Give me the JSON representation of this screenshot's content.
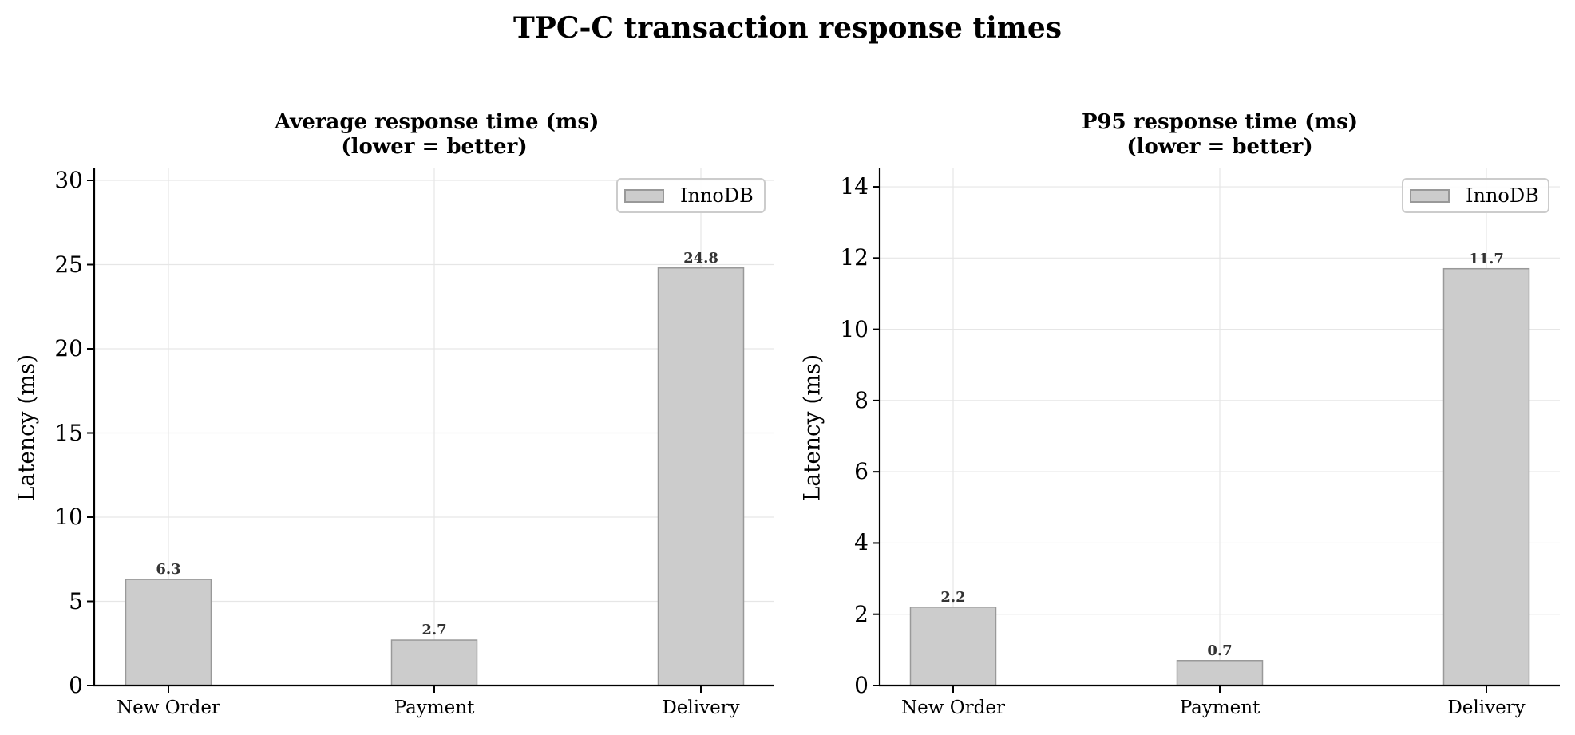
{
  "figure": {
    "title": "TPC-C transaction response times"
  },
  "colors": {
    "bar_fill": "#cccccc",
    "bar_edge": "#999999",
    "value_label": "#333333",
    "grid": "#e6e6e6",
    "axis": "#000000"
  },
  "chart_data": [
    {
      "type": "bar",
      "title": "Average response time (ms)\n(lower = better)",
      "title_lines": [
        "Average response time (ms)",
        "(lower = better)"
      ],
      "xlabel": "",
      "ylabel": "Latency (ms)",
      "categories": [
        "New Order",
        "Payment",
        "Delivery"
      ],
      "series": [
        {
          "name": "InnoDB",
          "values": [
            6.3,
            2.7,
            24.8
          ]
        }
      ],
      "value_labels": [
        "6.3",
        "2.7",
        "24.8"
      ],
      "yticks": [
        0,
        5,
        10,
        15,
        20,
        25,
        30
      ],
      "ylim": [
        0,
        31
      ],
      "grid": true,
      "legend": {
        "position": "upper right",
        "entries": [
          "InnoDB"
        ]
      }
    },
    {
      "type": "bar",
      "title": "P95 response time (ms)\n(lower = better)",
      "title_lines": [
        "P95 response time (ms)",
        "(lower = better)"
      ],
      "xlabel": "",
      "ylabel": "Latency (ms)",
      "categories": [
        "New Order",
        "Payment",
        "Delivery"
      ],
      "series": [
        {
          "name": "InnoDB",
          "values": [
            2.2,
            0.7,
            11.7
          ]
        }
      ],
      "value_labels": [
        "2.2",
        "0.7",
        "11.7"
      ],
      "yticks": [
        0,
        2,
        4,
        6,
        8,
        10,
        12,
        14
      ],
      "ylim": [
        0,
        14.6
      ],
      "grid": true,
      "legend": {
        "position": "upper right",
        "entries": [
          "InnoDB"
        ]
      }
    }
  ]
}
